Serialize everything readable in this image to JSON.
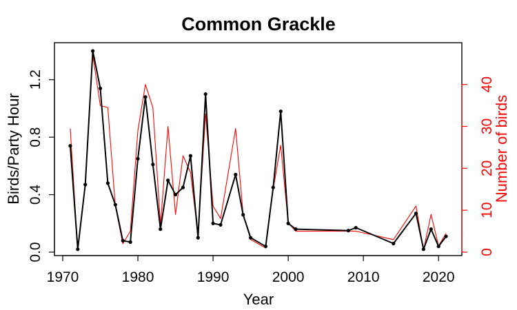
{
  "chart_data": {
    "type": "line",
    "title": "Common Grackle",
    "xlabel": "Year",
    "ylabel": "Birds/Party Hour",
    "y2label": "Number of birds",
    "xlim": [
      1970,
      2022
    ],
    "ylim": [
      0,
      1.4
    ],
    "y2lim": [
      0,
      48
    ],
    "x_ticks": [
      1970,
      1980,
      1990,
      2000,
      2010,
      2020
    ],
    "y_ticks": [
      0.0,
      0.4,
      0.8,
      1.2
    ],
    "y_tick_labels": [
      "0.0",
      "0.4",
      "0.8",
      "1.2"
    ],
    "y2_ticks": [
      0,
      10,
      20,
      30,
      40
    ],
    "grid": false,
    "colors": {
      "primary": "#000000",
      "secondary": "#ff0000"
    },
    "series": [
      {
        "name": "Birds/Party Hour",
        "axis": "left",
        "color": "#000000",
        "markers": true,
        "x": [
          1971,
          1972,
          1973,
          1974,
          1975,
          1976,
          1977,
          1978,
          1979,
          1980,
          1981,
          1982,
          1983,
          1984,
          1985,
          1986,
          1987,
          1988,
          1989,
          1990,
          1991,
          1993,
          1994,
          1995,
          1997,
          1998,
          1999,
          2000,
          2001,
          2008,
          2009,
          2014,
          2017,
          2018,
          2019,
          2020,
          2021
        ],
        "y": [
          0.74,
          0.02,
          0.47,
          1.4,
          1.14,
          0.48,
          0.33,
          0.08,
          0.07,
          0.65,
          1.08,
          0.61,
          0.16,
          0.5,
          0.4,
          0.45,
          0.67,
          0.1,
          1.1,
          0.2,
          0.19,
          0.54,
          0.26,
          0.1,
          0.04,
          0.45,
          0.98,
          0.2,
          0.16,
          0.15,
          0.17,
          0.06,
          0.27,
          0.02,
          0.16,
          0.04,
          0.11
        ]
      },
      {
        "name": "Number of birds",
        "axis": "right",
        "color": "#ff0000",
        "markers": false,
        "x": [
          1971,
          1972,
          1973,
          1974,
          1975,
          1976,
          1977,
          1978,
          1979,
          1980,
          1981,
          1982,
          1983,
          1984,
          1985,
          1986,
          1987,
          1988,
          1989,
          1990,
          1991,
          1993,
          1994,
          1995,
          1997,
          1998,
          1999,
          2000,
          2001,
          2008,
          2009,
          2014,
          2017,
          2018,
          2019,
          2020,
          2021
        ],
        "y": [
          29.5,
          0.5,
          16.0,
          47.0,
          35.0,
          34.5,
          11.0,
          2.0,
          5.0,
          29.0,
          40.0,
          34.5,
          6.5,
          30.0,
          9.0,
          23.0,
          19.0,
          4.0,
          33.0,
          11.0,
          8.0,
          29.5,
          9.0,
          3.0,
          1.0,
          15.0,
          25.5,
          7.0,
          5.0,
          5.0,
          5.0,
          3.0,
          11.0,
          0.5,
          9.0,
          1.5,
          4.5
        ]
      }
    ]
  }
}
